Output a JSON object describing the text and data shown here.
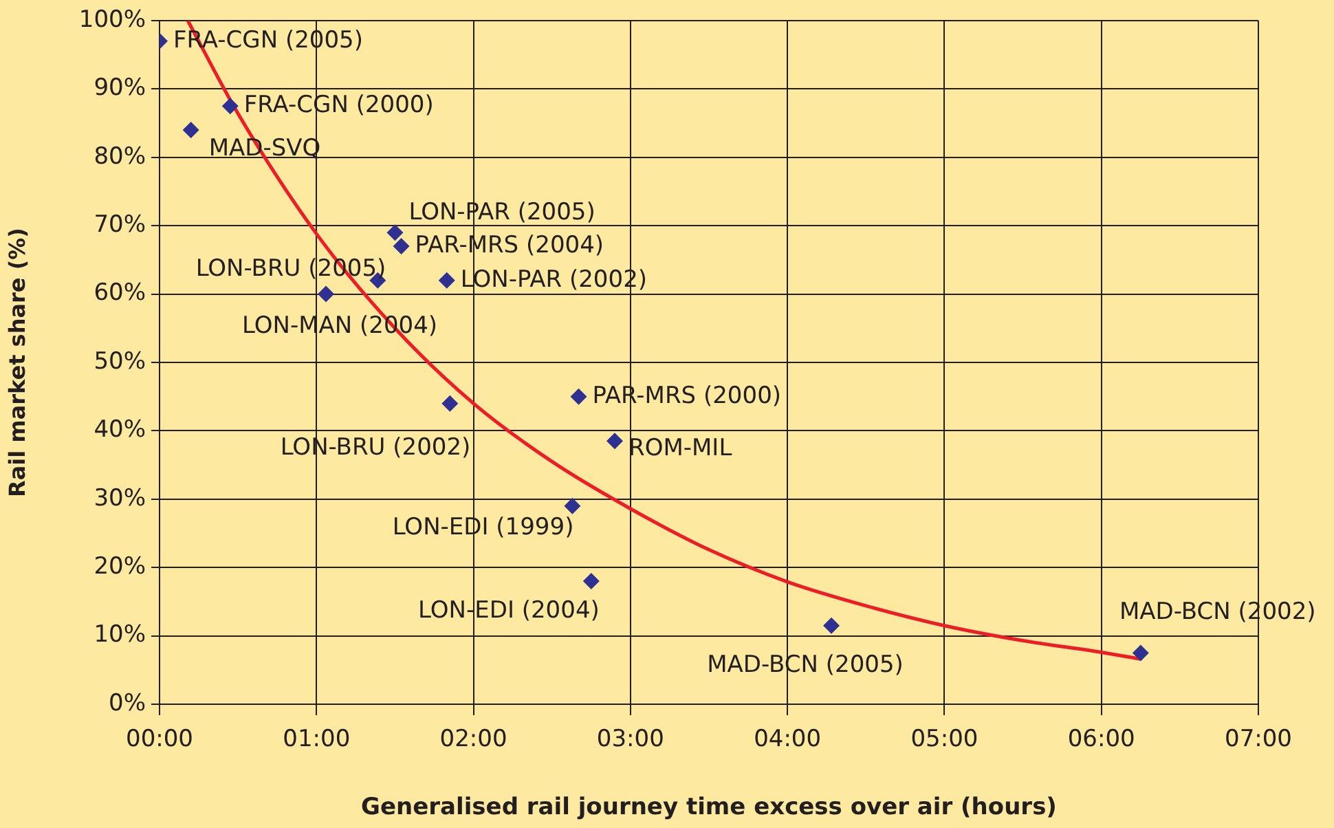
{
  "chart_data": {
    "type": "scatter",
    "xlabel": "Generalised rail journey time excess over air (hours)",
    "ylabel": "Rail market share (%)",
    "xlim": [
      0,
      7
    ],
    "xticks": [
      {
        "value": 0,
        "label": "00:00"
      },
      {
        "value": 1,
        "label": "01:00"
      },
      {
        "value": 2,
        "label": "02:00"
      },
      {
        "value": 3,
        "label": "03:00"
      },
      {
        "value": 4,
        "label": "04:00"
      },
      {
        "value": 5,
        "label": "05:00"
      },
      {
        "value": 6,
        "label": "06:00"
      },
      {
        "value": 7,
        "label": "07:00"
      }
    ],
    "ylim": [
      0,
      100
    ],
    "yticks": [
      {
        "value": 0,
        "label": "0%"
      },
      {
        "value": 10,
        "label": "10%"
      },
      {
        "value": 20,
        "label": "20%"
      },
      {
        "value": 30,
        "label": "30%"
      },
      {
        "value": 40,
        "label": "40%"
      },
      {
        "value": 50,
        "label": "50%"
      },
      {
        "value": 60,
        "label": "60%"
      },
      {
        "value": 70,
        "label": "70%"
      },
      {
        "value": 80,
        "label": "80%"
      },
      {
        "value": 90,
        "label": "90%"
      },
      {
        "value": 100,
        "label": "100%"
      }
    ],
    "grid": true,
    "legend": false,
    "marker": "diamond",
    "series": [
      {
        "type": "scatter",
        "color": "#2e3192",
        "x": [
          0,
          0.45,
          0.2,
          1.5,
          1.54,
          1.39,
          1.06,
          1.83,
          1.85,
          2.67,
          2.9,
          2.63,
          2.75,
          4.28,
          6.25
        ],
        "values": [
          97,
          87.5,
          84,
          69,
          67,
          62,
          60,
          62,
          44,
          45,
          38.5,
          29,
          18,
          11.5,
          7.5
        ]
      },
      {
        "type": "line",
        "color": "#ee1c25",
        "marker": "none",
        "x": [
          0.18,
          0.5,
          1,
          1.5,
          2,
          2.5,
          3,
          3.5,
          4,
          4.5,
          5,
          5.5,
          6,
          6.25
        ],
        "values": [
          100,
          86.4,
          68.8,
          55,
          44,
          35.5,
          28.6,
          22.6,
          17.9,
          14.4,
          11.5,
          9.3,
          7.6,
          6.6
        ]
      }
    ],
    "annotations": [
      {
        "text": "FRA-CGN (2005)",
        "x": 0,
        "y": 97
      },
      {
        "text": "FRA-CGN (2000)",
        "x": 0.45,
        "y": 87.5
      },
      {
        "text": "MAD-SVQ",
        "x": 0.2,
        "y": 84
      },
      {
        "text": "LON-PAR (2005)",
        "x": 1.5,
        "y": 69
      },
      {
        "text": "PAR-MRS (2004)",
        "x": 1.54,
        "y": 67
      },
      {
        "text": "LON-BRU (2005)",
        "x": 1.39,
        "y": 62
      },
      {
        "text": "LON-MAN (2004)",
        "x": 1.06,
        "y": 60
      },
      {
        "text": "LON-PAR (2002)",
        "x": 1.83,
        "y": 62
      },
      {
        "text": "LON-BRU (2002)",
        "x": 1.85,
        "y": 44
      },
      {
        "text": "PAR-MRS (2000)",
        "x": 2.67,
        "y": 45
      },
      {
        "text": "ROM-MIL",
        "x": 2.9,
        "y": 38.5
      },
      {
        "text": "LON-EDI (1999)",
        "x": 2.63,
        "y": 29
      },
      {
        "text": "LON-EDI (2004)",
        "x": 2.75,
        "y": 18
      },
      {
        "text": "MAD-BCN (2005)",
        "x": 4.28,
        "y": 11.5
      },
      {
        "text": "MAD-BCN (2002)",
        "x": 6.25,
        "y": 7.5
      }
    ]
  }
}
